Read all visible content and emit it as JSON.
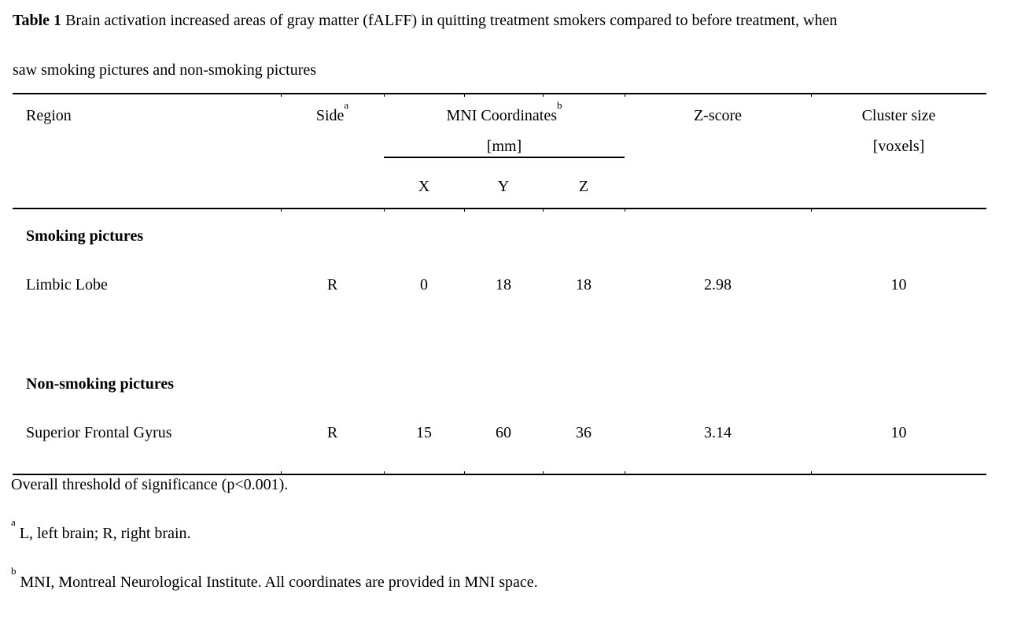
{
  "caption": {
    "label": "Table 1",
    "line1": " Brain activation increased areas of gray matter (fALFF) in quitting treatment smokers compared to before treatment, when",
    "line2": "saw smoking pictures and non-smoking pictures"
  },
  "table": {
    "headers": {
      "region": "Region",
      "side": "Side",
      "side_sup": "a",
      "mni": "MNI Coordinates",
      "mni_sup": "b",
      "mni_unit": "[mm]",
      "x": "X",
      "y": "Y",
      "z": "Z",
      "zscore": "Z-score",
      "cluster": "Cluster size",
      "cluster_unit": "[voxels]"
    },
    "sections": [
      {
        "title": "Smoking pictures",
        "rows": [
          {
            "region": "Limbic Lobe",
            "side": "R",
            "x": "0",
            "y": "18",
            "z": "18",
            "zscore": "2.98",
            "cluster": "10"
          }
        ]
      },
      {
        "title": "Non-smoking pictures",
        "rows": [
          {
            "region": "Superior Frontal Gyrus",
            "side": "R",
            "x": "15",
            "y": "60",
            "z": "36",
            "zscore": "3.14",
            "cluster": "10"
          }
        ]
      }
    ]
  },
  "footnotes": {
    "threshold": "Overall threshold of significance (p<0.001).",
    "a_mark": "a",
    "a_text": "L, left brain; R, right brain.",
    "b_mark": "b",
    "b_text": "MNI, Montreal Neurological Institute. All coordinates are provided in MNI space."
  },
  "colors": {
    "text": "#000000",
    "background": "#ffffff",
    "rule": "#000000"
  }
}
